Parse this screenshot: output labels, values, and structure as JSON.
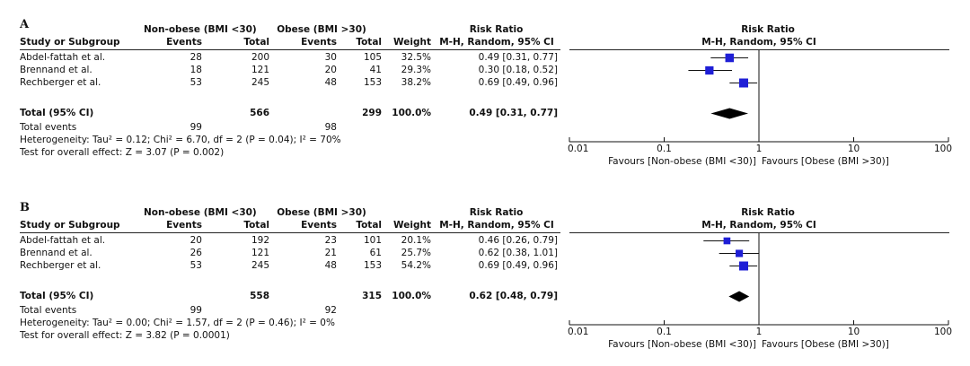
{
  "chart_data": [
    {
      "type": "forest",
      "panel_label": "A",
      "headers": {
        "group1": "Non-obese (BMI <30)",
        "group2": "Obese (BMI >30)",
        "rr_title": "Risk Ratio",
        "study": "Study or Subgroup",
        "events": "Events",
        "total": "Total",
        "weight": "Weight",
        "method": "M-H, Random, 95% CI",
        "plot_title": "Risk Ratio",
        "plot_method": "M-H, Random, 95% CI"
      },
      "studies": [
        {
          "name": "Abdel-fattah et al.",
          "e1": "28",
          "t1": "200",
          "e2": "30",
          "t2": "105",
          "weight": "32.5%",
          "ci_text": "0.49 [0.31, 0.77]",
          "rr": 0.49,
          "lo": 0.31,
          "hi": 0.77,
          "w": 32.5
        },
        {
          "name": "Brennand et al.",
          "e1": "18",
          "t1": "121",
          "e2": "20",
          "t2": "41",
          "weight": "29.3%",
          "ci_text": "0.30 [0.18, 0.52]",
          "rr": 0.3,
          "lo": 0.18,
          "hi": 0.52,
          "w": 29.3
        },
        {
          "name": "Rechberger et al.",
          "e1": "53",
          "t1": "245",
          "e2": "48",
          "t2": "153",
          "weight": "38.2%",
          "ci_text": "0.69 [0.49, 0.96]",
          "rr": 0.69,
          "lo": 0.49,
          "hi": 0.96,
          "w": 38.2
        }
      ],
      "total": {
        "label": "Total (95% CI)",
        "t1": "566",
        "t2": "299",
        "weight": "100.0%",
        "ci_text": "0.49 [0.31, 0.77]",
        "rr": 0.49,
        "lo": 0.31,
        "hi": 0.77
      },
      "total_events": {
        "label": "Total events",
        "e1": "99",
        "e2": "98"
      },
      "heterogeneity": "Heterogeneity: Tau² = 0.12; Chi² = 6.70, df = 2 (P = 0.04); I² = 70%",
      "overall_effect": "Test for overall effect: Z = 3.07 (P = 0.002)",
      "axis": {
        "scale": "log",
        "ticks": [
          0.01,
          0.1,
          1,
          10,
          100
        ],
        "tick_labels": [
          "0.01",
          "0.1",
          "1",
          "10",
          "100"
        ],
        "xlim": [
          0.01,
          100
        ]
      },
      "favours_left": "Favours [Non-obese (BMI <30)]",
      "favours_right": "Favours [Obese (BMI >30)]",
      "marker_color": "#1f1fd6"
    },
    {
      "type": "forest",
      "panel_label": "B",
      "headers": {
        "group1": "Non-obese (BMI <30)",
        "group2": "Obese (BMI >30)",
        "rr_title": "Risk Ratio",
        "study": "Study or Subgroup",
        "events": "Events",
        "total": "Total",
        "weight": "Weight",
        "method": "M-H, Random, 95% CI",
        "plot_title": "Risk Ratio",
        "plot_method": "M-H, Random, 95% CI"
      },
      "studies": [
        {
          "name": "Abdel-fattah et al.",
          "e1": "20",
          "t1": "192",
          "e2": "23",
          "t2": "101",
          "weight": "20.1%",
          "ci_text": "0.46 [0.26, 0.79]",
          "rr": 0.46,
          "lo": 0.26,
          "hi": 0.79,
          "w": 20.1
        },
        {
          "name": "Brennand et al.",
          "e1": "26",
          "t1": "121",
          "e2": "21",
          "t2": "61",
          "weight": "25.7%",
          "ci_text": "0.62 [0.38, 1.01]",
          "rr": 0.62,
          "lo": 0.38,
          "hi": 1.01,
          "w": 25.7
        },
        {
          "name": "Rechberger et al.",
          "e1": "53",
          "t1": "245",
          "e2": "48",
          "t2": "153",
          "weight": "54.2%",
          "ci_text": "0.69 [0.49, 0.96]",
          "rr": 0.69,
          "lo": 0.49,
          "hi": 0.96,
          "w": 54.2
        }
      ],
      "total": {
        "label": "Total (95% CI)",
        "t1": "558",
        "t2": "315",
        "weight": "100.0%",
        "ci_text": "0.62 [0.48, 0.79]",
        "rr": 0.62,
        "lo": 0.48,
        "hi": 0.79
      },
      "total_events": {
        "label": "Total events",
        "e1": "99",
        "e2": "92"
      },
      "heterogeneity": "Heterogeneity: Tau² = 0.00; Chi² = 1.57, df = 2 (P = 0.46); I² = 0%",
      "overall_effect": "Test for overall effect: Z = 3.82 (P = 0.0001)",
      "axis": {
        "scale": "log",
        "ticks": [
          0.01,
          0.1,
          1,
          10,
          100
        ],
        "tick_labels": [
          "0.01",
          "0.1",
          "1",
          "10",
          "100"
        ],
        "xlim": [
          0.01,
          100
        ]
      },
      "favours_left": "Favours [Non-obese (BMI <30)]",
      "favours_right": "Favours [Obese (BMI >30)]",
      "marker_color": "#1f1fd6"
    }
  ]
}
